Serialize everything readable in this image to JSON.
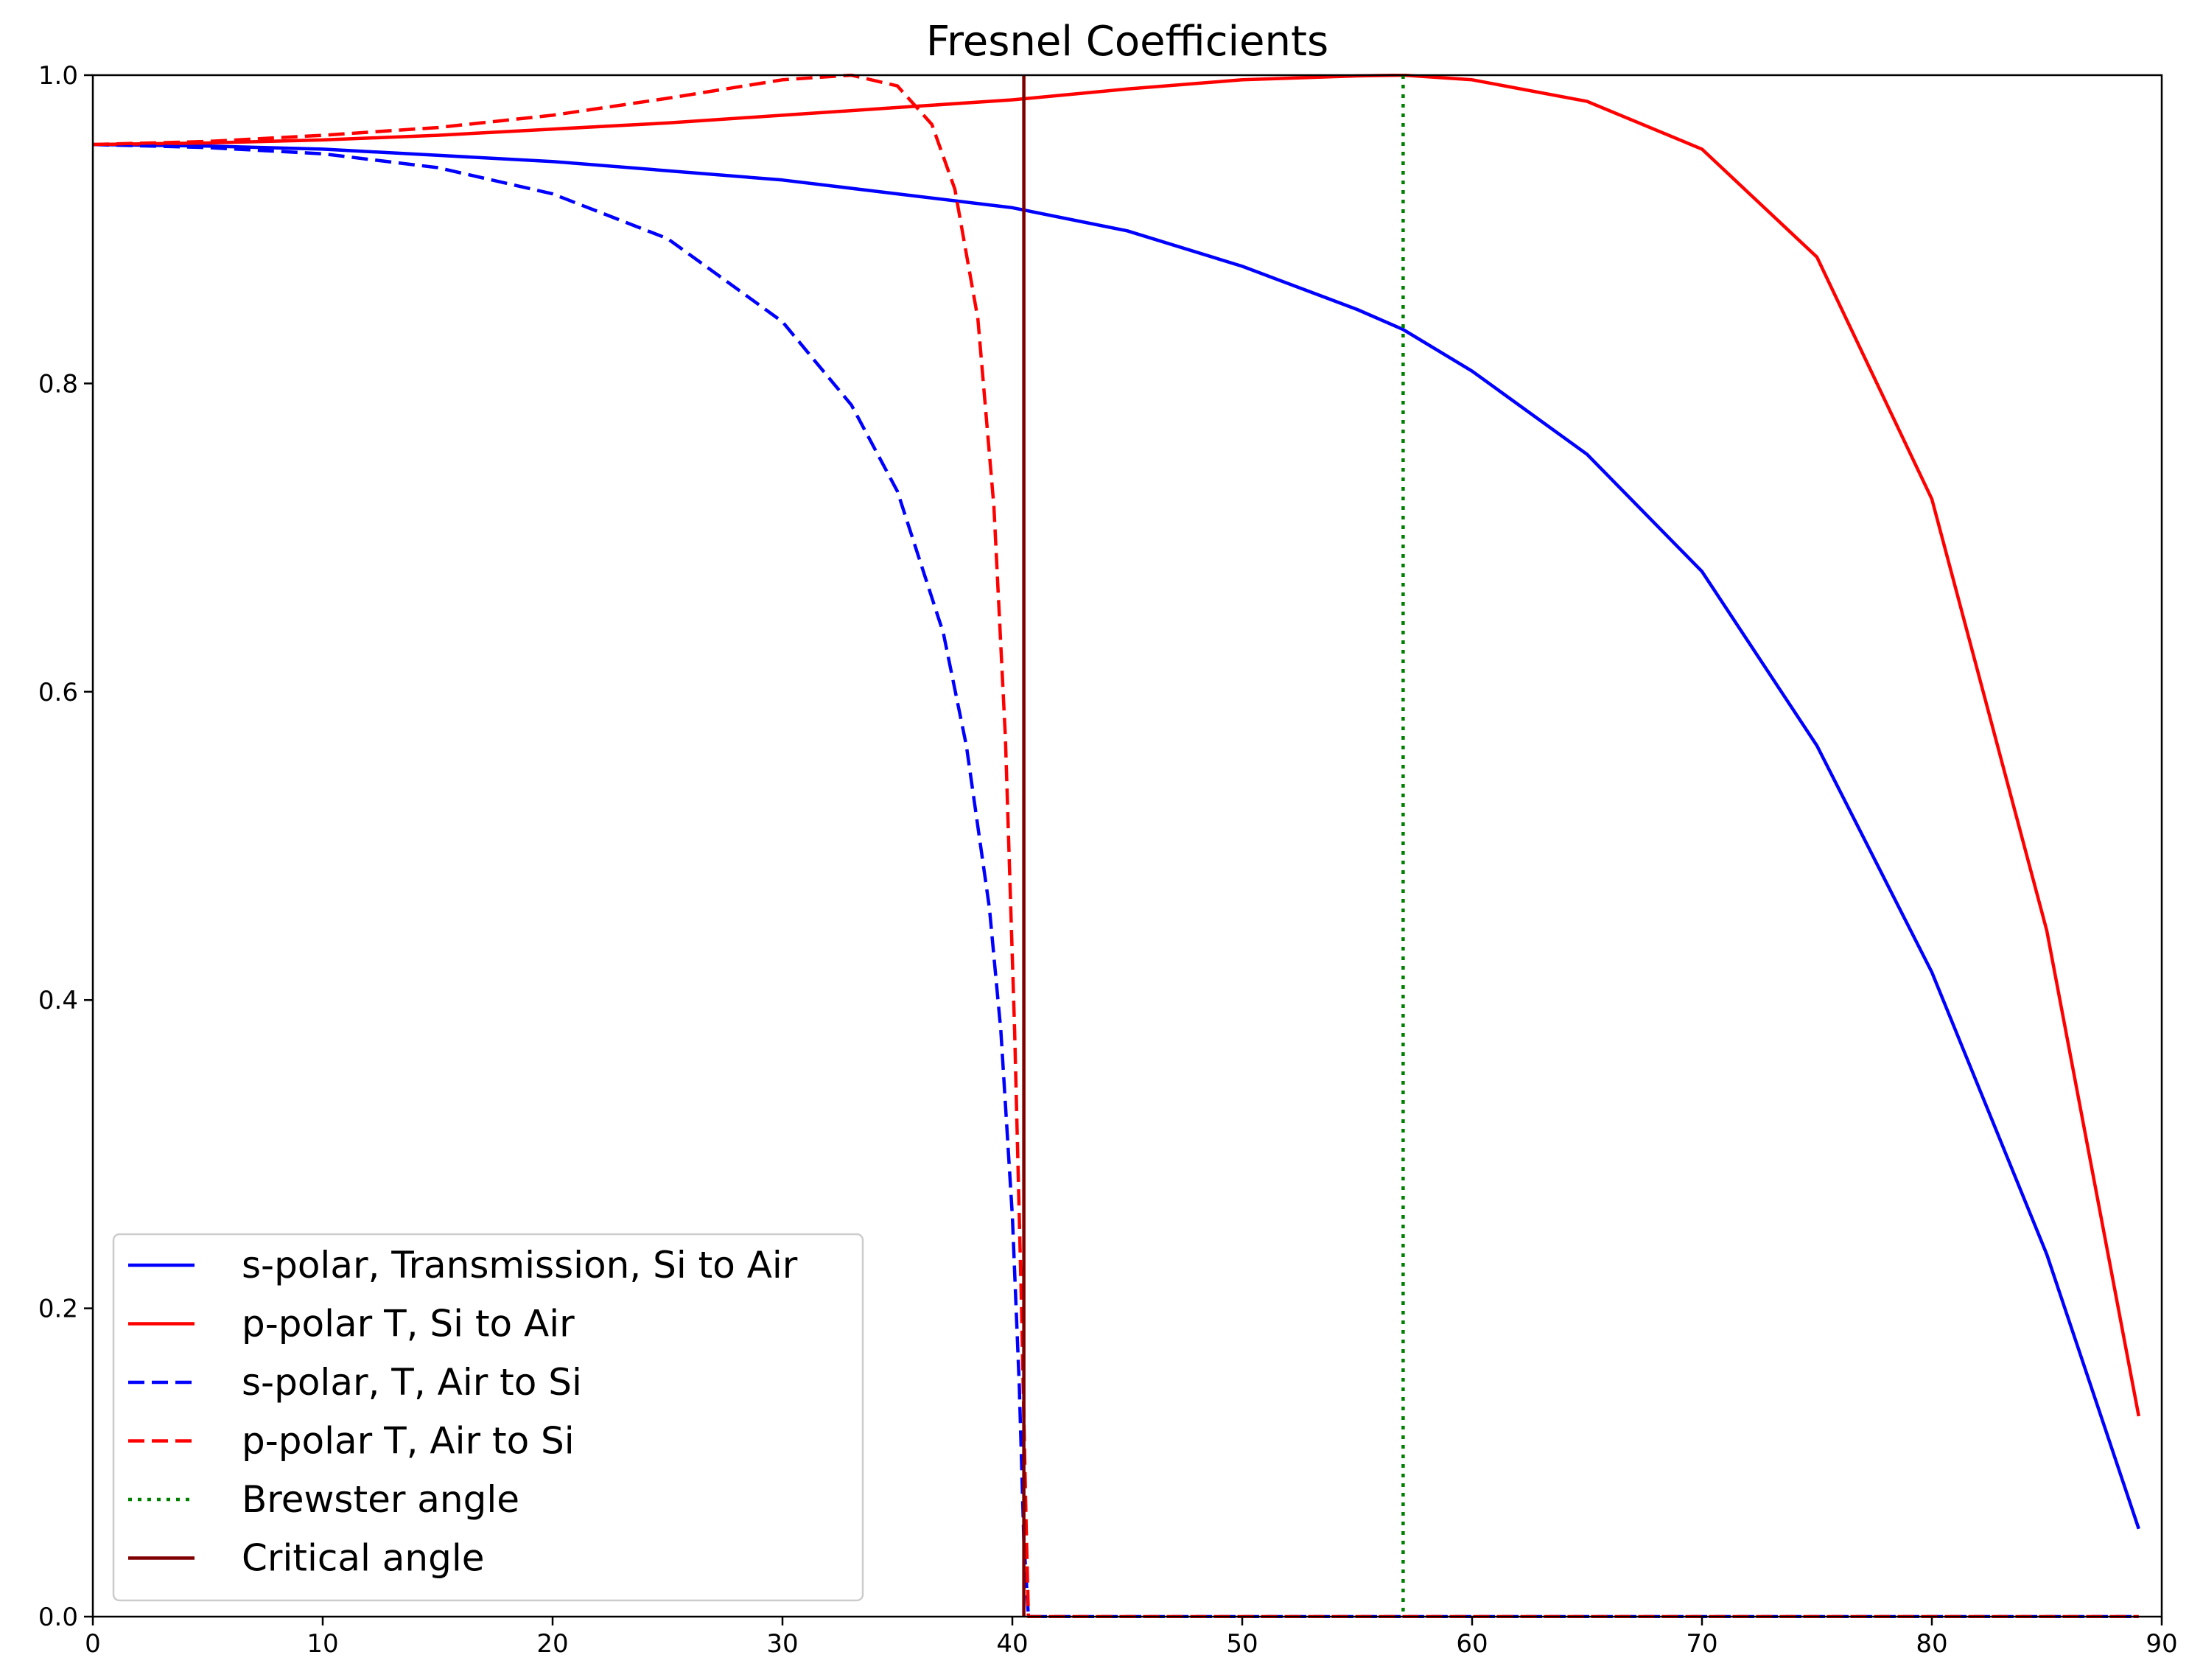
{
  "chart_data": {
    "type": "line",
    "title": "Fresnel Coefficients",
    "xlabel": "",
    "ylabel": "",
    "xlim": [
      0,
      90
    ],
    "ylim": [
      0,
      1
    ],
    "x_ticks": [
      "0",
      "10",
      "20",
      "30",
      "40",
      "50",
      "60",
      "70",
      "80",
      "90"
    ],
    "y_ticks": [
      "0.0",
      "0.2",
      "0.4",
      "0.6",
      "0.8",
      "1.0"
    ],
    "grid": false,
    "legend_position": "lower-left",
    "series": [
      {
        "name": "s-polar, Transmission, Si to Air",
        "color": "#0000ff",
        "style": "solid",
        "x": [
          0,
          5,
          10,
          15,
          20,
          25,
          30,
          35,
          40,
          45,
          50,
          55,
          57,
          60,
          65,
          70,
          75,
          80,
          85,
          89
        ],
        "y": [
          0.955,
          0.954,
          0.952,
          0.948,
          0.944,
          0.938,
          0.932,
          0.923,
          0.914,
          0.899,
          0.876,
          0.848,
          0.835,
          0.808,
          0.754,
          0.678,
          0.565,
          0.418,
          0.235,
          0.057
        ]
      },
      {
        "name": "p-polar T, Si to Air",
        "color": "#ff0000",
        "style": "solid",
        "x": [
          0,
          5,
          10,
          15,
          20,
          25,
          30,
          35,
          40,
          45,
          50,
          55,
          57,
          60,
          65,
          70,
          75,
          80,
          85,
          89
        ],
        "y": [
          0.955,
          0.956,
          0.958,
          0.961,
          0.965,
          0.969,
          0.974,
          0.979,
          0.984,
          0.991,
          0.997,
          0.9995,
          1.0,
          0.997,
          0.983,
          0.952,
          0.882,
          0.725,
          0.445,
          0.13
        ]
      },
      {
        "name": "s-polar, T, Air to Si",
        "color": "#0000ff",
        "style": "dashed",
        "x": [
          0,
          5,
          10,
          15,
          20,
          25,
          30,
          33,
          35,
          37,
          38,
          39,
          39.5,
          40,
          40.3,
          40.5,
          40.7,
          45,
          50,
          55,
          60,
          65,
          70,
          75,
          80,
          85,
          89
        ],
        "y": [
          0.955,
          0.953,
          0.949,
          0.94,
          0.923,
          0.894,
          0.84,
          0.786,
          0.73,
          0.638,
          0.565,
          0.46,
          0.38,
          0.26,
          0.15,
          0.05,
          0.0,
          0,
          0,
          0,
          0,
          0,
          0,
          0,
          0,
          0,
          0
        ]
      },
      {
        "name": "p-polar T, Air to Si",
        "color": "#ff0000",
        "style": "dashed",
        "x": [
          0,
          5,
          10,
          15,
          20,
          25,
          30,
          33,
          35,
          36.5,
          37.5,
          38.5,
          39.2,
          39.7,
          40.1,
          40.4,
          40.6,
          40.7,
          45,
          50,
          55,
          60,
          65,
          70,
          75,
          80,
          85,
          89
        ],
        "y": [
          0.955,
          0.957,
          0.961,
          0.966,
          0.974,
          0.985,
          0.997,
          1.0,
          0.993,
          0.968,
          0.926,
          0.842,
          0.72,
          0.57,
          0.38,
          0.2,
          0.06,
          0.0,
          0,
          0,
          0,
          0,
          0,
          0,
          0,
          0,
          0,
          0
        ]
      }
    ],
    "vlines": [
      {
        "name": "Brewster angle",
        "x": 57.0,
        "color": "#008000",
        "style": "dotted"
      },
      {
        "name": "Critical angle",
        "x": 40.5,
        "color": "#800000",
        "style": "solid"
      }
    ]
  }
}
